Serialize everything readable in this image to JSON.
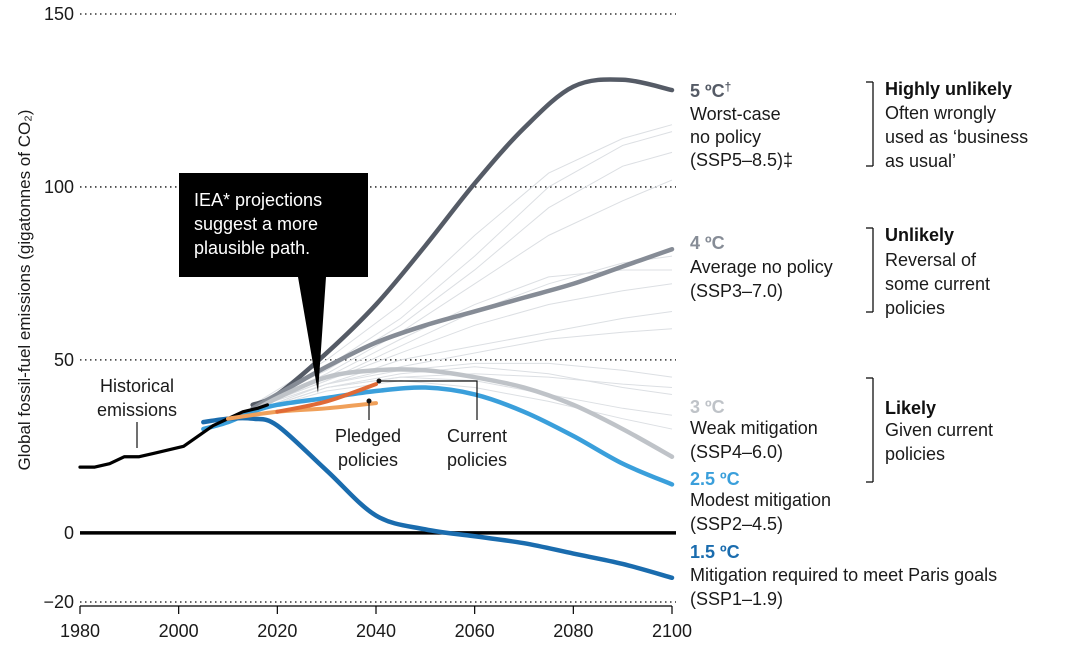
{
  "chart_data": {
    "type": "line",
    "ylabel": "Global fossil-fuel emissions (gigatonnes of CO₂)",
    "xlim": [
      1980,
      2100
    ],
    "ylim": [
      -20,
      150
    ],
    "x_ticks": [
      1980,
      2000,
      2020,
      2040,
      2060,
      2080,
      2100
    ],
    "y_ticks": [
      150,
      100,
      50,
      0,
      -20
    ],
    "series": [
      {
        "key": "ssp585",
        "color": "#555b66",
        "x": [
          2015,
          2020,
          2030,
          2040,
          2050,
          2060,
          2070,
          2080,
          2090,
          2100
        ],
        "values": [
          37,
          40,
          52,
          66,
          83,
          101,
          117,
          129,
          131,
          128
        ]
      },
      {
        "key": "ssp370",
        "color": "#868c96",
        "x": [
          2015,
          2020,
          2030,
          2040,
          2050,
          2060,
          2070,
          2080,
          2090,
          2100
        ],
        "values": [
          36,
          40,
          48,
          55,
          60,
          64,
          68,
          72,
          77,
          82
        ]
      },
      {
        "key": "ssp460",
        "color": "#bfc3c8",
        "x": [
          2015,
          2020,
          2030,
          2040,
          2050,
          2060,
          2070,
          2080,
          2090,
          2100
        ],
        "values": [
          35,
          39,
          45,
          47,
          47,
          45,
          42,
          37,
          30,
          22
        ]
      },
      {
        "key": "ssp245",
        "color": "#3a9fdb",
        "x": [
          2005,
          2010,
          2015,
          2020,
          2030,
          2040,
          2050,
          2060,
          2070,
          2080,
          2090,
          2100
        ],
        "values": [
          30,
          32,
          35,
          37,
          39,
          41,
          42,
          40,
          35,
          28,
          20,
          14
        ]
      },
      {
        "key": "ssp119",
        "color": "#1a6cae",
        "x": [
          2005,
          2010,
          2015,
          2020,
          2030,
          2040,
          2050,
          2060,
          2070,
          2080,
          2090,
          2100
        ],
        "values": [
          32,
          33,
          33,
          31,
          18,
          5,
          1,
          -1,
          -3,
          -6,
          -9,
          -13
        ]
      },
      {
        "key": "historical",
        "color": "#000000",
        "x": [
          1980,
          1983,
          1986,
          1989,
          1992,
          1995,
          1998,
          2001,
          2004,
          2007,
          2010,
          2013,
          2016,
          2018
        ],
        "values": [
          19,
          19,
          20,
          22,
          22,
          23,
          24,
          25,
          28,
          31,
          33,
          35,
          36,
          37
        ]
      },
      {
        "key": "pledged",
        "color": "#f0a05a",
        "x": [
          2010,
          2020,
          2030,
          2040
        ],
        "values": [
          33,
          35,
          36,
          37.5
        ]
      },
      {
        "key": "current",
        "color": "#e06a36",
        "x": [
          2020,
          2030,
          2040
        ],
        "values": [
          35,
          38,
          43
        ]
      }
    ],
    "scenario_labels": [
      {
        "key": "ssp585",
        "temp": "5 ºC",
        "mark": "†",
        "lines": [
          "Worst-case",
          "no policy",
          "(SSP5–8.5)‡"
        ],
        "color": "#555b66"
      },
      {
        "key": "ssp370",
        "temp": "4 ºC",
        "lines": [
          "Average no policy",
          "(SSP3–7.0)"
        ],
        "color": "#868c96"
      },
      {
        "key": "ssp460",
        "temp": "3 ºC",
        "lines": [
          "Weak mitigation",
          "(SSP4–6.0)"
        ],
        "color": "#bfc3c8"
      },
      {
        "key": "ssp245",
        "temp": "2.5 ºC",
        "lines": [
          "Modest mitigation",
          "(SSP2–4.5)"
        ],
        "color": "#3a9fdb"
      },
      {
        "key": "ssp119",
        "temp": "1.5 ºC",
        "lines": [
          "Mitigation required to meet Paris goals",
          "(SSP1–1.9)"
        ],
        "color": "#1a6cae"
      }
    ],
    "likelihood_groups": [
      {
        "title": "Highly unlikely",
        "lines": [
          "Often wrongly",
          "used as ‘business",
          "as usual’"
        ]
      },
      {
        "title": "Unlikely",
        "lines": [
          "Reversal of",
          "some current",
          "policies"
        ]
      },
      {
        "title": "Likely",
        "lines": [
          "Given current",
          "policies"
        ]
      }
    ],
    "annotations": {
      "historical": [
        "Historical",
        "emissions"
      ],
      "pledged": [
        "Pledged",
        "policies"
      ],
      "current": [
        "Current",
        "policies"
      ],
      "iea_callout": [
        "IEA* projections",
        "suggest a more",
        "plausible path."
      ]
    }
  }
}
